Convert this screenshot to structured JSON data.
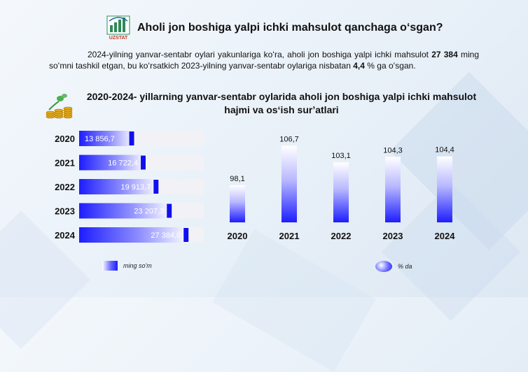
{
  "header": {
    "logo_text": "UZSTAT",
    "title": "Aholi jon boshiga yalpi ichki mahsulot qanchaga oʻsgan?"
  },
  "intro": {
    "part1": "2024-yilning yanvar-sentabr oylari yakunlariga koʻra, aholi jon boshiga yalpi ichki mahsulot",
    "value": "27 384",
    "part2": "ming soʻmni tashkil etgan, bu koʻrsatkich 2023-yilning yanvar-sentabr oylariga nisbatan",
    "growth": "4,4",
    "part3": "% ga oʻsgan."
  },
  "subtitle": "2020-2024- yillarning yanvar-sentabr oylarida aholi jon boshiga yalpi ichki mahsulot hajmi va osʻish surʼatlari",
  "colors": {
    "bar_dark": "#1d1dff",
    "bar_light": "#ffffff",
    "marker": "#1010ee"
  },
  "chart_data": [
    {
      "type": "bar",
      "orientation": "horizontal",
      "categories": [
        "2020",
        "2021",
        "2022",
        "2023",
        "2024"
      ],
      "values": [
        13856.7,
        16722.4,
        19913.7,
        23207.3,
        27384.0
      ],
      "value_labels": [
        "13 856,7",
        "16 722,4",
        "19 913,7",
        "23 207,3",
        "27 384,0"
      ],
      "xlim": [
        0,
        31000
      ],
      "legend": "ming so'm"
    },
    {
      "type": "bar",
      "orientation": "vertical",
      "categories": [
        "2020",
        "2021",
        "2022",
        "2023",
        "2024"
      ],
      "values": [
        98.1,
        106.7,
        103.1,
        104.3,
        104.4
      ],
      "value_labels": [
        "98,1",
        "106,7",
        "103,1",
        "104,3",
        "104,4"
      ],
      "legend": "% da"
    }
  ]
}
